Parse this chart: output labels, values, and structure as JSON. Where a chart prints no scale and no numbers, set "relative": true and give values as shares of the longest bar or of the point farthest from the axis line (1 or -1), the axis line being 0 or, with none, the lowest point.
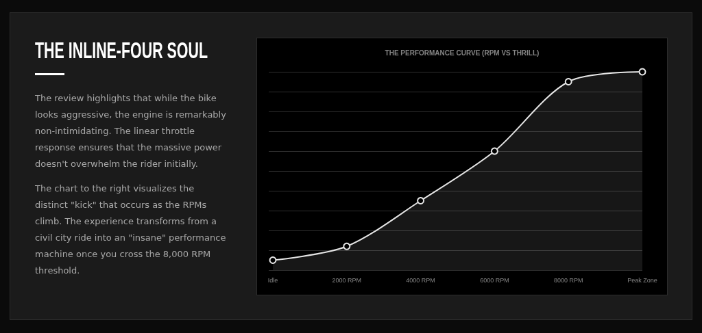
{
  "chart_data": [
    {
      "type": "other",
      "title": "THE INLINE-FOUR SOUL",
      "annotations": [
        "The review highlights that while the bike looks aggressive, the engine is remarkably non-intimidating. The linear throttle response ensures that the massive power doesn't overwhelm the rider initially.",
        "The chart to the right visualizes the distinct \"kick\" that occurs as the RPMs climb. The experience transforms from a civil city ride into an \"insane\" performance machine once you cross the 8,000 RPM threshold."
      ]
    },
    {
      "type": "area",
      "title": "THE PERFORMANCE CURVE (RPM VS THRILL)",
      "categories": [
        "Idle",
        "2000 RPM",
        "4000 RPM",
        "6000 RPM",
        "8000 RPM",
        "Peak Zone"
      ],
      "values": [
        0.05,
        0.12,
        0.35,
        0.6,
        0.95,
        1
      ],
      "color": "#e6e6e6",
      "relative": true,
      "grid": "y",
      "marker": "circle",
      "line_style": "solid"
    }
  ]
}
